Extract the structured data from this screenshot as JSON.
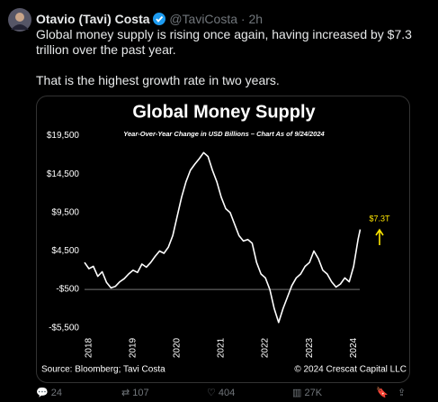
{
  "tweet": {
    "author": "Otavio (Tavi) Costa",
    "handle": "@TaviCosta",
    "time": "2h",
    "text": [
      "Global money supply is rising once again, having increased by $7.3 trillion over the past year.",
      "That is the highest growth rate in two years."
    ]
  },
  "chart_data": {
    "type": "line",
    "title": "Global Money Supply",
    "subtitle": "Year-Over-Year Change in USD Billions – Chart As of 9/24/2024",
    "x": [
      2017.9,
      2018.0,
      2018.1,
      2018.2,
      2018.3,
      2018.4,
      2018.5,
      2018.6,
      2018.7,
      2018.8,
      2018.9,
      2019.0,
      2019.1,
      2019.2,
      2019.3,
      2019.4,
      2019.5,
      2019.6,
      2019.7,
      2019.8,
      2019.9,
      2020.0,
      2020.1,
      2020.2,
      2020.3,
      2020.4,
      2020.5,
      2020.6,
      2020.7,
      2020.8,
      2020.9,
      2021.0,
      2021.1,
      2021.2,
      2021.3,
      2021.4,
      2021.5,
      2021.6,
      2021.7,
      2021.8,
      2021.9,
      2022.0,
      2022.1,
      2022.2,
      2022.3,
      2022.4,
      2022.5,
      2022.6,
      2022.7,
      2022.8,
      2022.9,
      2023.0,
      2023.1,
      2023.2,
      2023.3,
      2023.4,
      2023.5,
      2023.6,
      2023.7,
      2023.8,
      2023.9,
      2024.0,
      2024.1,
      2024.15
    ],
    "series": [
      {
        "name": "Global Money Supply",
        "color": "#ffffff",
        "values": [
          3000,
          2200,
          2500,
          1200,
          1800,
          400,
          -300,
          -100,
          500,
          900,
          1500,
          2000,
          1700,
          2800,
          2400,
          3000,
          3800,
          4500,
          4200,
          5000,
          6500,
          9000,
          11500,
          13500,
          15000,
          15800,
          16500,
          17300,
          16800,
          15000,
          13500,
          11500,
          10000,
          9500,
          8000,
          6500,
          5800,
          6000,
          5500,
          3000,
          1500,
          1000,
          -500,
          -3000,
          -4800,
          -3000,
          -1500,
          0,
          1000,
          1500,
          2500,
          3000,
          4500,
          3500,
          2000,
          1500,
          500,
          -200,
          200,
          1000,
          500,
          2500,
          6000,
          7300
        ]
      }
    ],
    "xlim": [
      2017.9,
      2024.2
    ],
    "xticks": [
      2018,
      2019,
      2020,
      2021,
      2022,
      2023,
      2024
    ],
    "ylim": [
      -6000,
      20500
    ],
    "yticks": [
      {
        "value": 19500,
        "label": "$19,500"
      },
      {
        "value": 14500,
        "label": "$14,500"
      },
      {
        "value": 9500,
        "label": "$9,500"
      },
      {
        "value": 4500,
        "label": "$4,500"
      },
      {
        "value": -500,
        "label": "-$500"
      },
      {
        "value": -5500,
        "label": "-$5,500"
      }
    ],
    "hline": -500,
    "annotation": "$7.3T",
    "annotation_color": "#ffe600",
    "source": "Source: Bloomberg; Tavi Costa",
    "copyright": "© 2024 Crescat Capital LLC"
  },
  "actions": {
    "replies": "24",
    "reposts": "107",
    "likes": "404",
    "views": "27K"
  }
}
